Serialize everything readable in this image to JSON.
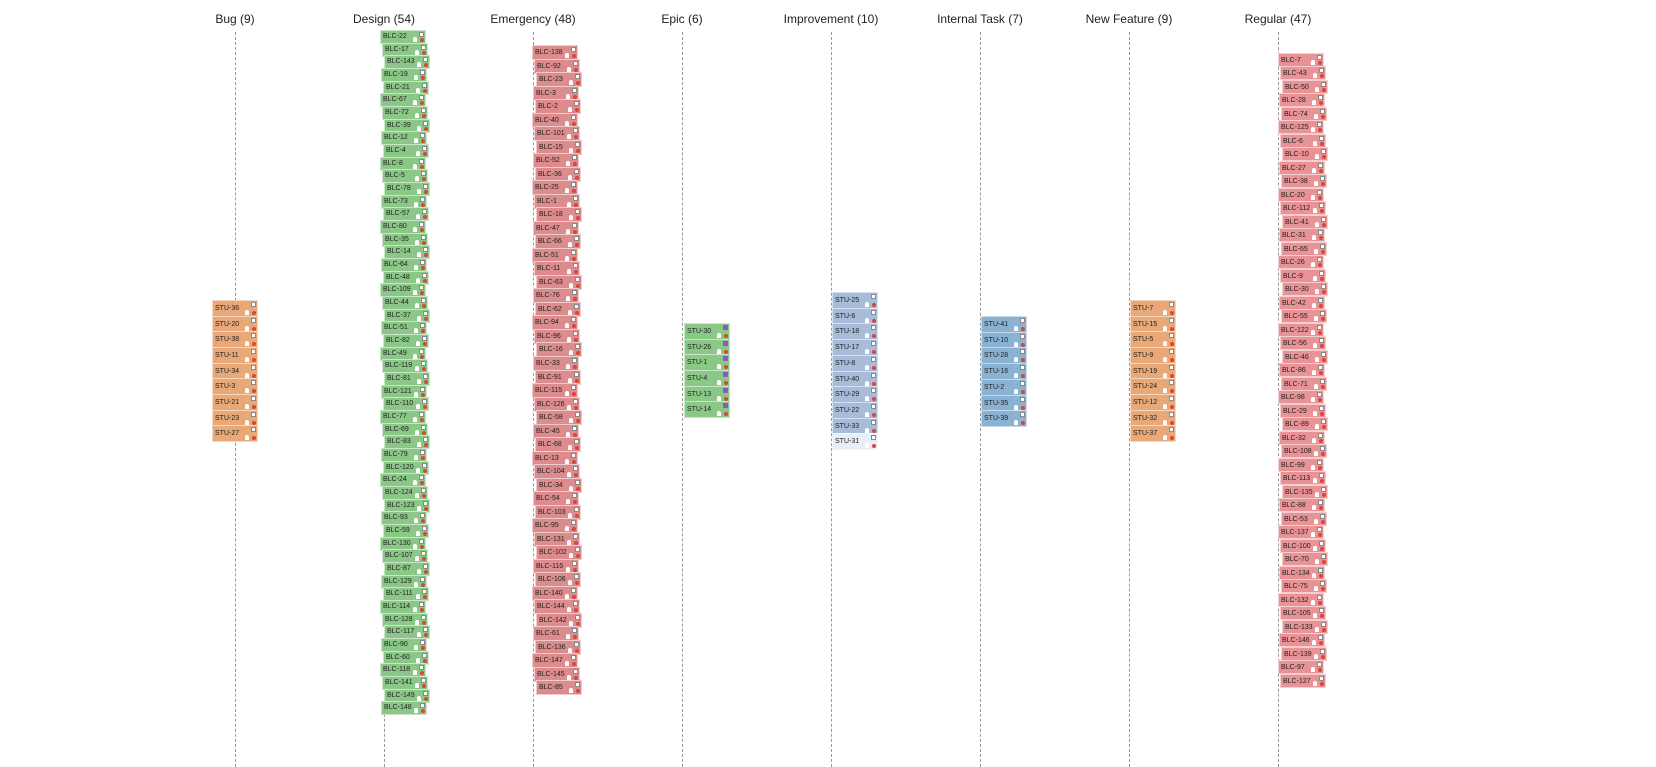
{
  "colors": {
    "bug": "#e8a877",
    "design": "#8bc887",
    "emergency": "#dc8c8c",
    "epic": "#8bc887",
    "improvement": "#a7bcd8",
    "improvement_light": "#e7eef8",
    "internal": "#8ab2d3",
    "new_feature": "#e8a877",
    "regular": "#e99396",
    "epic_badge": "#8a5acb",
    "priority": "#d9463b"
  },
  "icons": {
    "badge": "issue-type-icon",
    "avatar": "assignee-icon",
    "priority": "priority-icon"
  },
  "columns": [
    {
      "id": "bug",
      "label": "Bug (9)",
      "color": "bug",
      "items": [
        "STU-36",
        "STU-20",
        "STU-38",
        "STU-11",
        "STU-34",
        "STU-3",
        "STU-21",
        "STU-23",
        "STU-27"
      ]
    },
    {
      "id": "design",
      "label": "Design (54)",
      "color": "design",
      "items": [
        "BLC-22",
        "BLC-17",
        "BLC-143",
        "BLC-19",
        "BLC-21",
        "BLC-67",
        "BLC-72",
        "BLC-39",
        "BLC-12",
        "BLC-4",
        "BLC-8",
        "BLC-5",
        "BLC-78",
        "BLC-73",
        "BLC-57",
        "BLC-80",
        "BLC-35",
        "BLC-14",
        "BLC-64",
        "BLC-48",
        "BLC-109",
        "BLC-44",
        "BLC-37",
        "BLC-51",
        "BLC-82",
        "BLC-49",
        "BLC-119",
        "BLC-81",
        "BLC-121",
        "BLC-110",
        "BLC-77",
        "BLC-69",
        "BLC-83",
        "BLC-79",
        "BLC-120",
        "BLC-24",
        "BLC-124",
        "BLC-123",
        "BLC-93",
        "BLC-59",
        "BLC-130",
        "BLC-107",
        "BLC-87",
        "BLC-129",
        "BLC-111",
        "BLC-114",
        "BLC-128",
        "BLC-117",
        "BLC-90",
        "BLC-60",
        "BLC-118",
        "BLC-141",
        "BLC-149",
        "BLC-148"
      ]
    },
    {
      "id": "emergency",
      "label": "Emergency (48)",
      "color": "emergency",
      "items": [
        "BLC-138",
        "BLC-92",
        "BLC-23",
        "BLC-3",
        "BLC-2",
        "BLC-40",
        "BLC-101",
        "BLC-15",
        "BLC-52",
        "BLC-36",
        "BLC-25",
        "BLC-1",
        "BLC-18",
        "BLC-47",
        "BLC-66",
        "BLC-51",
        "BLC-11",
        "BLC-63",
        "BLC-76",
        "BLC-62",
        "BLC-94",
        "BLC-96",
        "BLC-16",
        "BLC-33",
        "BLC-91",
        "BLC-115",
        "BLC-126",
        "BLC-58",
        "BLC-45",
        "BLC-68",
        "BLC-13",
        "BLC-104",
        "BLC-34",
        "BLC-54",
        "BLC-103",
        "BLC-95",
        "BLC-131",
        "BLC-102",
        "BLC-116",
        "BLC-106",
        "BLC-140",
        "BLC-144",
        "BLC-142",
        "BLC-61",
        "BLC-136",
        "BLC-147",
        "BLC-145",
        "BLC-85"
      ]
    },
    {
      "id": "epic",
      "label": "Epic (6)",
      "color": "epic",
      "items": [
        "STU-30",
        "STU-26",
        "STU-1",
        "STU-4",
        "STU-13",
        "STU-14"
      ]
    },
    {
      "id": "improvement",
      "label": "Improvement (10)",
      "color": "improvement",
      "items": [
        "STU-25",
        "STU-6",
        "STU-18",
        "STU-17",
        "STU-8",
        "STU-40",
        "STU-29",
        "STU-22",
        "STU-33",
        "STU-31"
      ]
    },
    {
      "id": "internal",
      "label": "Internal Task (7)",
      "color": "internal",
      "items": [
        "STU-41",
        "STU-10",
        "STU-28",
        "STU-16",
        "STU-2",
        "STU-35",
        "STU-39"
      ]
    },
    {
      "id": "new_feature",
      "label": "New Feature (9)",
      "color": "new_feature",
      "items": [
        "STU-7",
        "STU-15",
        "STU-5",
        "STU-9",
        "STU-19",
        "STU-24",
        "STU-12",
        "STU-32",
        "STU-37"
      ]
    },
    {
      "id": "regular",
      "label": "Regular (47)",
      "color": "regular",
      "items": [
        "BLC-7",
        "BLC-43",
        "BLC-50",
        "BLC-28",
        "BLC-74",
        "BLC-125",
        "BLC-6",
        "BLC-10",
        "BLC-27",
        "BLC-38",
        "BLC-20",
        "BLC-112",
        "BLC-41",
        "BLC-31",
        "BLC-65",
        "BLC-26",
        "BLC-9",
        "BLC-30",
        "BLC-42",
        "BLC-55",
        "BLC-122",
        "BLC-56",
        "BLC-46",
        "BLC-86",
        "BLC-71",
        "BLC-98",
        "BLC-29",
        "BLC-89",
        "BLC-32",
        "BLC-108",
        "BLC-99",
        "BLC-113",
        "BLC-135",
        "BLC-88",
        "BLC-53",
        "BLC-137",
        "BLC-100",
        "BLC-70",
        "BLC-134",
        "BLC-75",
        "BLC-132",
        "BLC-105",
        "BLC-133",
        "BLC-146",
        "BLC-139",
        "BLC-97",
        "BLC-127"
      ]
    }
  ]
}
